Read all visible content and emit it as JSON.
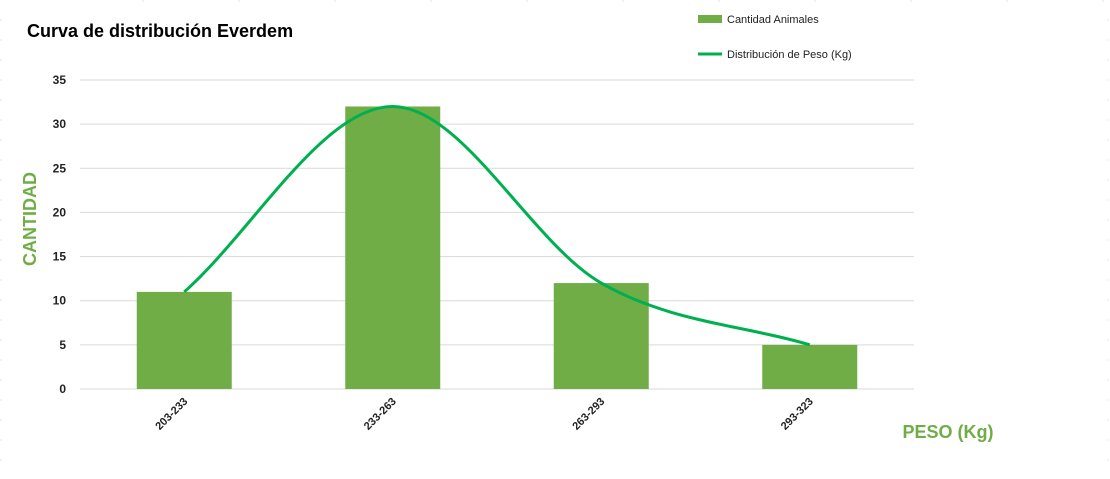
{
  "chart_data": {
    "type": "bar",
    "title": "Curva de distribución Everdem",
    "xlabel": "PESO (Kg)",
    "ylabel": "CANTIDAD",
    "categories": [
      "203-233",
      "233-263",
      "263-293",
      "293-323"
    ],
    "ylim": [
      0,
      35
    ],
    "yticks": [
      0,
      5,
      10,
      15,
      20,
      25,
      30,
      35
    ],
    "grid": true,
    "legend_position": "top-right",
    "series": [
      {
        "name": "Cantidad Animales",
        "kind": "bar",
        "values": [
          11,
          32,
          12,
          5
        ],
        "color": "#70ad47"
      },
      {
        "name": "Distribución de Peso (Kg)",
        "kind": "line",
        "smooth": true,
        "values": [
          11,
          32,
          12,
          5
        ],
        "color": "#00b050"
      }
    ]
  },
  "colors": {
    "axis_label": "#70ad47",
    "gridline": "#d9d9d9"
  }
}
